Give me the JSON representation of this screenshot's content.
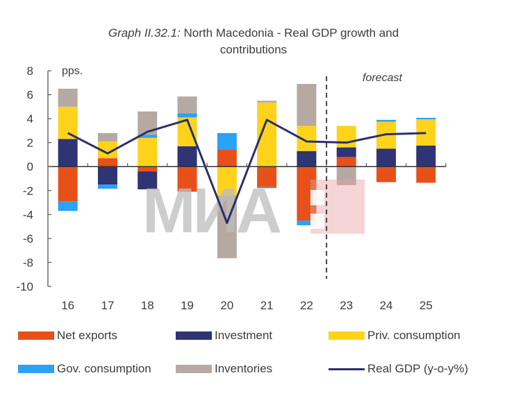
{
  "chart_data": {
    "type": "bar",
    "stacked": true,
    "title_prefix": "Graph II.32.1:",
    "title_main": "North Macedonia - Real GDP growth and",
    "title_line2": "contributions",
    "ylabel": "pps.",
    "xlabel": "",
    "ylim": [
      -10,
      8
    ],
    "yticks": [
      8,
      6,
      4,
      2,
      0,
      -2,
      -4,
      -6,
      -8,
      -10
    ],
    "categories": [
      "16",
      "17",
      "18",
      "19",
      "20",
      "21",
      "22",
      "23",
      "24",
      "25"
    ],
    "forecast_label": "forecast",
    "forecast_starts_after": "22",
    "grid": false,
    "legend_position": "bottom",
    "series": [
      {
        "name": "Net exports",
        "kind": "bar",
        "color": "#E8501A",
        "values": [
          -2.9,
          0.7,
          -0.4,
          -2.1,
          1.4,
          -1.7,
          -4.5,
          0.8,
          -1.3,
          -1.35
        ]
      },
      {
        "name": "Investment",
        "kind": "bar",
        "color": "#2E3474",
        "values": [
          2.3,
          -1.5,
          -1.5,
          1.7,
          0.0,
          0.0,
          1.3,
          0.8,
          1.5,
          1.75
        ]
      },
      {
        "name": "Priv. consumption",
        "kind": "bar",
        "color": "#FFD31C",
        "values": [
          2.7,
          1.4,
          2.4,
          2.4,
          -2.45,
          5.35,
          2.1,
          1.8,
          2.25,
          2.2
        ]
      },
      {
        "name": "Gov. consumption",
        "kind": "bar",
        "color": "#2AA2F5",
        "values": [
          -0.8,
          -0.35,
          0.25,
          0.35,
          1.4,
          -0.1,
          -0.4,
          0.0,
          0.15,
          0.12
        ]
      },
      {
        "name": "Inventories",
        "kind": "bar",
        "color": "#B5A9A2",
        "values": [
          1.5,
          0.7,
          1.95,
          1.4,
          -5.2,
          0.15,
          3.5,
          -1.55,
          0.0,
          0.0
        ]
      },
      {
        "name": "Real GDP (y-o-y%)",
        "kind": "line",
        "color": "#2B2F6B",
        "values": [
          2.8,
          1.1,
          2.9,
          3.9,
          -4.7,
          3.9,
          2.1,
          2.0,
          2.7,
          2.8
        ]
      }
    ]
  },
  "watermark": {
    "text": "МИА",
    "text_color": "#BDBDBD",
    "block_color": "#E8A0A5"
  }
}
